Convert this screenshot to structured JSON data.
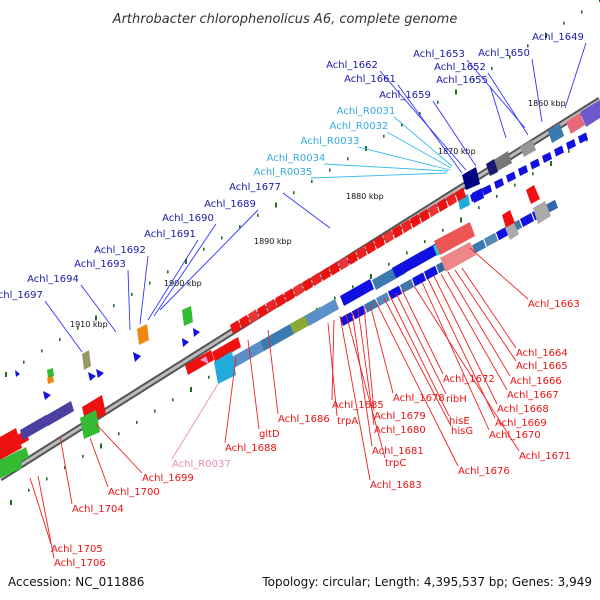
{
  "title": "Arthrobacter chlorophenolicus A6, complete genome",
  "footer": {
    "accession": "Accession: NC_011886",
    "summary": "Topology: circular; Length: 4,395,537 bp; Genes: 3,949"
  },
  "scale_labels": [
    "1860 kbp",
    "1870 kbp",
    "1880 kbp",
    "1890 kbp",
    "1900 kbp",
    "1910 kbp"
  ],
  "colors": {
    "forward_cds": "#1010e0",
    "reverse_cds": "#ee1111",
    "trna_forward": "#33bbee",
    "trna_reverse": "#ee99cc",
    "backbone": "#888888",
    "tick": "#207020"
  },
  "labels": {
    "blue": [
      "Achl_1649",
      "Achl_1650",
      "Achl_1653",
      "Achl_1652",
      "Achl_1655",
      "Achl_1662",
      "Achl_1661",
      "Achl_1659",
      "Achl_1677",
      "Achl_1689",
      "Achl_1690",
      "Achl_1691",
      "Achl_1692",
      "Achl_1693",
      "Achl_1694",
      "Achl_1697"
    ],
    "cyan": [
      "Achl_R0031",
      "Achl_R0032",
      "Achl_R0033",
      "Achl_R0034",
      "Achl_R0035"
    ],
    "red": [
      "Achl_1663",
      "Achl_1664",
      "Achl_1665",
      "Achl_1666",
      "Achl_1667",
      "Achl_1668",
      "Achl_1669",
      "Achl_1670",
      "Achl_1671",
      "Achl_1672",
      "ribH",
      "hisE",
      "hisG",
      "Achl_1676",
      "Achl_1678",
      "Achl_1679",
      "Achl_1680",
      "Achl_1681",
      "trpC",
      "Achl_1683",
      "Achl_1685",
      "trpA",
      "Achl_1686",
      "gltD",
      "Achl_1688",
      "Achl_1699",
      "Achl_1700",
      "Achl_1704",
      "Achl_1705",
      "Achl_1706"
    ],
    "pink": [
      "Achl_R0037"
    ]
  }
}
